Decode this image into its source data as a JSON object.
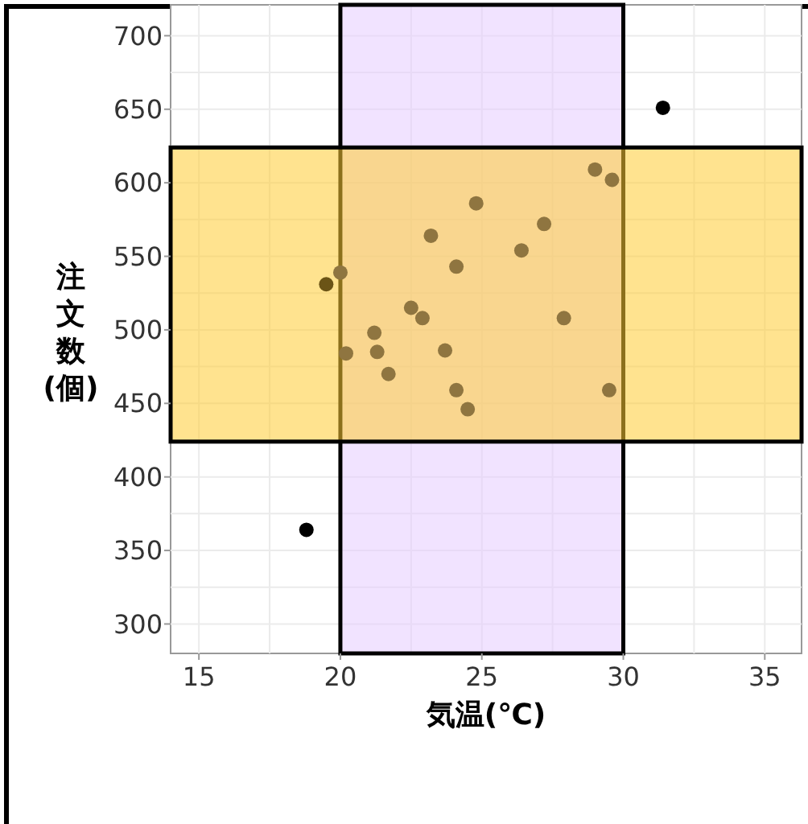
{
  "chart_data": {
    "type": "scatter",
    "xlabel": "気温(℃)",
    "ylabel": "注文数(個)",
    "x": [
      31.4,
      18.8,
      29.0,
      29.6,
      24.8,
      27.2,
      23.2,
      26.4,
      24.1,
      19.5,
      20.0,
      22.5,
      22.9,
      27.9,
      21.2,
      20.2,
      21.3,
      23.7,
      21.7,
      24.1,
      29.5,
      24.5
    ],
    "series": [
      {
        "colors": [
          "#000000",
          "#000000",
          "#8f7540",
          "#8f7540",
          "#8f7540",
          "#8f7540",
          "#8f7540",
          "#8f7540",
          "#8f7540",
          "#6b5416",
          "#8f7540",
          "#8f7540",
          "#8f7540",
          "#8f7540",
          "#8f7540",
          "#8f7540",
          "#8f7540",
          "#8f7540",
          "#8f7540",
          "#8f7540",
          "#8f7540",
          "#8f7540"
        ],
        "values": [
          651,
          364,
          609,
          602,
          586,
          572,
          564,
          554,
          543,
          531,
          539,
          515,
          508,
          508,
          498,
          484,
          485,
          486,
          470,
          459,
          459,
          446
        ]
      }
    ],
    "xlim": [
      14,
      36.3
    ],
    "ylim": [
      280,
      721
    ],
    "xticks": [
      15,
      20,
      25,
      30,
      35
    ],
    "yticks": [
      300,
      350,
      400,
      450,
      500,
      550,
      600,
      650,
      700
    ],
    "grid": true,
    "marker": "circle",
    "bands": [
      {
        "axis": "x",
        "from": 20,
        "to": 30,
        "color": "#e6ccff"
      },
      {
        "axis": "y",
        "from": 424,
        "to": 624,
        "color": "#ffcc33"
      }
    ]
  }
}
